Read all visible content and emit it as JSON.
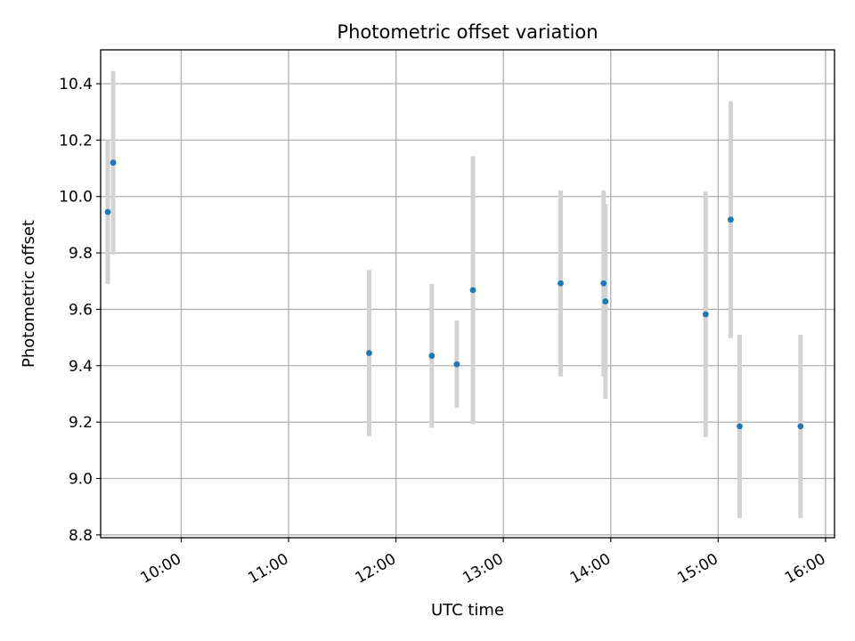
{
  "chart_data": {
    "type": "scatter",
    "title": "Photometric offset variation",
    "xlabel": "UTC time",
    "ylabel": "Photometric offset",
    "xlim": [
      "09:15",
      "16:05"
    ],
    "ylim": [
      8.79,
      10.52
    ],
    "x_ticks": [
      "10:00",
      "11:00",
      "12:00",
      "13:00",
      "14:00",
      "15:00",
      "16:00"
    ],
    "y_ticks": [
      "8.8",
      "9.0",
      "9.2",
      "9.4",
      "9.6",
      "9.8",
      "10.0",
      "10.2",
      "10.4"
    ],
    "grid": true,
    "colors": {
      "marker": "#1f77b4",
      "errorbar": "#d3d3d3",
      "grid": "#b0b0b0"
    },
    "points": [
      {
        "x": "09:19",
        "y": 9.945,
        "yerr": 0.255
      },
      {
        "x": "09:22",
        "y": 10.12,
        "yerr": 0.325
      },
      {
        "x": "11:45",
        "y": 9.445,
        "yerr": 0.295
      },
      {
        "x": "12:20",
        "y": 9.435,
        "yerr": 0.255
      },
      {
        "x": "12:34",
        "y": 9.405,
        "yerr": 0.155
      },
      {
        "x": "12:43",
        "y": 9.668,
        "yerr": 0.475
      },
      {
        "x": "13:32",
        "y": 9.692,
        "yerr": 0.33
      },
      {
        "x": "13:56",
        "y": 9.692,
        "yerr": 0.33
      },
      {
        "x": "13:57",
        "y": 9.628,
        "yerr": 0.345
      },
      {
        "x": "14:53",
        "y": 9.582,
        "yerr": 0.435
      },
      {
        "x": "15:07",
        "y": 9.918,
        "yerr": 0.42
      },
      {
        "x": "15:12",
        "y": 9.185,
        "yerr": 0.325
      },
      {
        "x": "15:46",
        "y": 9.185,
        "yerr": 0.325
      }
    ]
  }
}
